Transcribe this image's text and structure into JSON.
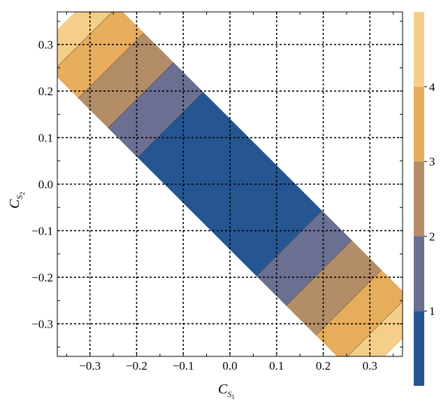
{
  "chart_data": {
    "type": "heatmap",
    "title": "",
    "xlabel": {
      "base": "C",
      "sub": "S",
      "subsub": "1"
    },
    "ylabel": {
      "base": "C",
      "sub": "S",
      "subsub": "2"
    },
    "xlim": [
      -0.37,
      0.37
    ],
    "ylim": [
      -0.37,
      0.37
    ],
    "x_ticks": [
      -0.3,
      -0.2,
      -0.1,
      0.0,
      0.1,
      0.2,
      0.3
    ],
    "x_tick_labels": [
      "−0.3",
      "−0.2",
      "−0.1",
      "0.0",
      "0.1",
      "0.2",
      "0.3"
    ],
    "y_ticks": [
      0.3,
      0.2,
      0.1,
      0.0,
      -0.1,
      -0.2,
      -0.3
    ],
    "y_tick_labels": [
      "0.3",
      "0.2",
      "0.1",
      "0.0",
      "−0.1",
      "−0.2",
      "−0.3"
    ],
    "grid": "dashed",
    "region": {
      "description_axis": "points along C_S1 + C_S2 = 0",
      "half_width_perpendicular": 0.099,
      "half_length_along": 0.496
    },
    "contour_levels": [
      {
        "range": [
          0,
          1
        ],
        "color": "#255691"
      },
      {
        "range": [
          1,
          2
        ],
        "color": "#6b6f91"
      },
      {
        "range": [
          2,
          3
        ],
        "color": "#b38d67"
      },
      {
        "range": [
          3,
          4
        ],
        "color": "#e6ad5c"
      },
      {
        "range": [
          4,
          5
        ],
        "color": "#f5cf89"
      }
    ],
    "band_boundaries_along": [
      0.18,
      0.27,
      0.36,
      0.44
    ],
    "colorbar": {
      "range": [
        0,
        5
      ],
      "tick_values": [
        1,
        2,
        3,
        4
      ],
      "tick_labels": [
        "1",
        "2",
        "3",
        "4"
      ]
    }
  }
}
